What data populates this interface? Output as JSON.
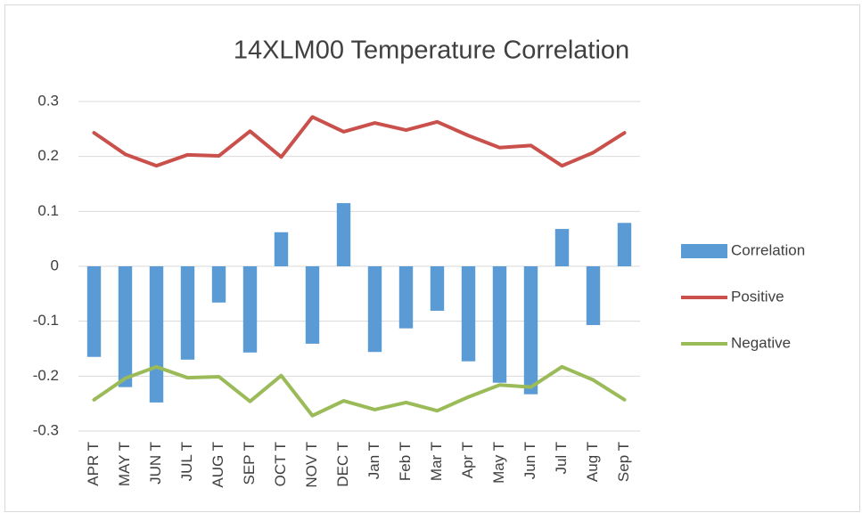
{
  "chart_data": {
    "type": "bar",
    "title": "14XLM00 Temperature Correlation",
    "categories": [
      "APR T",
      "MAY T",
      "JUN T",
      "JUL T",
      "AUG T",
      "SEP T",
      "OCT T",
      "NOV T",
      "DEC T",
      "Jan T",
      "Feb T",
      "Mar T",
      "Apr T",
      "May T",
      "Jun T",
      "Jul T",
      "Aug T",
      "Sep T"
    ],
    "series": [
      {
        "name": "Correlation",
        "type": "bar",
        "color": "#5b9bd5",
        "values": [
          -0.165,
          -0.22,
          -0.248,
          -0.17,
          -0.066,
          -0.157,
          0.062,
          -0.141,
          0.115,
          -0.156,
          -0.113,
          -0.081,
          -0.173,
          -0.212,
          -0.233,
          0.068,
          -0.107,
          0.079
        ]
      },
      {
        "name": "Positive",
        "type": "line",
        "color": "#c9504b",
        "values": [
          0.243,
          0.204,
          0.183,
          0.203,
          0.201,
          0.246,
          0.199,
          0.272,
          0.245,
          0.261,
          0.248,
          0.263,
          0.238,
          0.216,
          0.22,
          0.183,
          0.207,
          0.243
        ]
      },
      {
        "name": "Negative",
        "type": "line",
        "color": "#9bbb59",
        "values": [
          -0.243,
          -0.204,
          -0.183,
          -0.203,
          -0.201,
          -0.246,
          -0.199,
          -0.272,
          -0.245,
          -0.261,
          -0.248,
          -0.263,
          -0.238,
          -0.216,
          -0.22,
          -0.183,
          -0.207,
          -0.243
        ]
      }
    ],
    "ylim": [
      -0.3,
      0.3
    ],
    "yticks": [
      -0.3,
      -0.2,
      -0.1,
      0,
      0.1,
      0.2,
      0.3
    ],
    "grid": true,
    "legend": "right"
  }
}
